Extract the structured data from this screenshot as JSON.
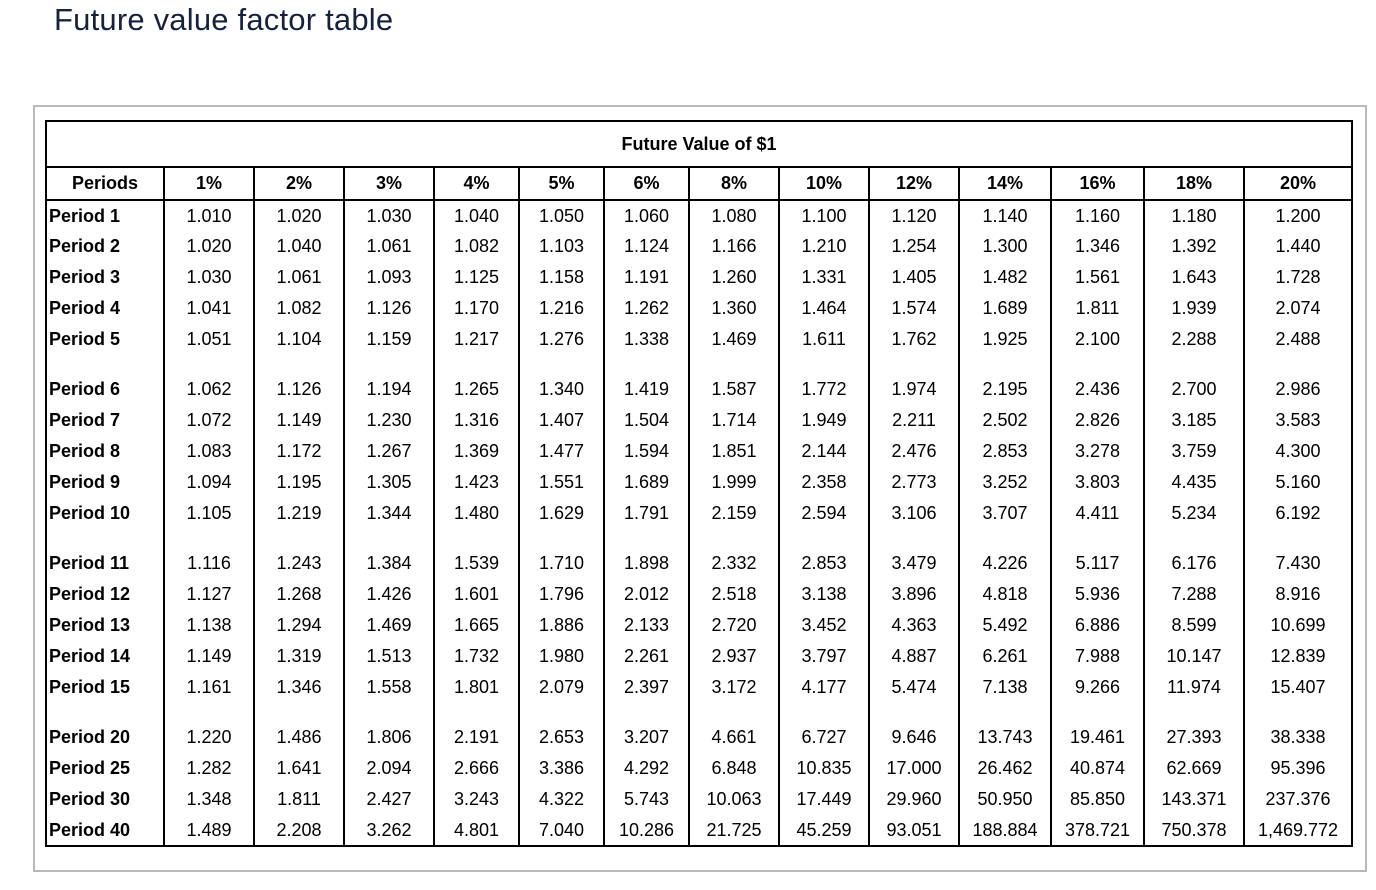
{
  "page": {
    "title": "Future value factor table"
  },
  "colors": {
    "title_text": "#16213e",
    "table_border": "#000000",
    "panel_border": "#bababa",
    "table_text": "#000000",
    "background": "#ffffff"
  },
  "chart_data": {
    "type": "table",
    "title": "Future Value of $1",
    "row_header_label": "Periods",
    "columns": [
      "1%",
      "2%",
      "3%",
      "4%",
      "5%",
      "6%",
      "8%",
      "10%",
      "12%",
      "14%",
      "16%",
      "18%",
      "20%"
    ],
    "groups": [
      {
        "name": "periods-1-5",
        "rows": [
          {
            "label": "Period 1",
            "values": [
              "1.010",
              "1.020",
              "1.030",
              "1.040",
              "1.050",
              "1.060",
              "1.080",
              "1.100",
              "1.120",
              "1.140",
              "1.160",
              "1.180",
              "1.200"
            ]
          },
          {
            "label": "Period 2",
            "values": [
              "1.020",
              "1.040",
              "1.061",
              "1.082",
              "1.103",
              "1.124",
              "1.166",
              "1.210",
              "1.254",
              "1.300",
              "1.346",
              "1.392",
              "1.440"
            ]
          },
          {
            "label": "Period 3",
            "values": [
              "1.030",
              "1.061",
              "1.093",
              "1.125",
              "1.158",
              "1.191",
              "1.260",
              "1.331",
              "1.405",
              "1.482",
              "1.561",
              "1.643",
              "1.728"
            ]
          },
          {
            "label": "Period 4",
            "values": [
              "1.041",
              "1.082",
              "1.126",
              "1.170",
              "1.216",
              "1.262",
              "1.360",
              "1.464",
              "1.574",
              "1.689",
              "1.811",
              "1.939",
              "2.074"
            ]
          },
          {
            "label": "Period 5",
            "values": [
              "1.051",
              "1.104",
              "1.159",
              "1.217",
              "1.276",
              "1.338",
              "1.469",
              "1.611",
              "1.762",
              "1.925",
              "2.100",
              "2.288",
              "2.488"
            ]
          }
        ]
      },
      {
        "name": "periods-6-10",
        "rows": [
          {
            "label": "Period 6",
            "values": [
              "1.062",
              "1.126",
              "1.194",
              "1.265",
              "1.340",
              "1.419",
              "1.587",
              "1.772",
              "1.974",
              "2.195",
              "2.436",
              "2.700",
              "2.986"
            ]
          },
          {
            "label": "Period 7",
            "values": [
              "1.072",
              "1.149",
              "1.230",
              "1.316",
              "1.407",
              "1.504",
              "1.714",
              "1.949",
              "2.211",
              "2.502",
              "2.826",
              "3.185",
              "3.583"
            ]
          },
          {
            "label": "Period 8",
            "values": [
              "1.083",
              "1.172",
              "1.267",
              "1.369",
              "1.477",
              "1.594",
              "1.851",
              "2.144",
              "2.476",
              "2.853",
              "3.278",
              "3.759",
              "4.300"
            ]
          },
          {
            "label": "Period 9",
            "values": [
              "1.094",
              "1.195",
              "1.305",
              "1.423",
              "1.551",
              "1.689",
              "1.999",
              "2.358",
              "2.773",
              "3.252",
              "3.803",
              "4.435",
              "5.160"
            ]
          },
          {
            "label": "Period 10",
            "values": [
              "1.105",
              "1.219",
              "1.344",
              "1.480",
              "1.629",
              "1.791",
              "2.159",
              "2.594",
              "3.106",
              "3.707",
              "4.411",
              "5.234",
              "6.192"
            ]
          }
        ]
      },
      {
        "name": "periods-11-15",
        "rows": [
          {
            "label": "Period 11",
            "values": [
              "1.116",
              "1.243",
              "1.384",
              "1.539",
              "1.710",
              "1.898",
              "2.332",
              "2.853",
              "3.479",
              "4.226",
              "5.117",
              "6.176",
              "7.430"
            ]
          },
          {
            "label": "Period 12",
            "values": [
              "1.127",
              "1.268",
              "1.426",
              "1.601",
              "1.796",
              "2.012",
              "2.518",
              "3.138",
              "3.896",
              "4.818",
              "5.936",
              "7.288",
              "8.916"
            ]
          },
          {
            "label": "Period 13",
            "values": [
              "1.138",
              "1.294",
              "1.469",
              "1.665",
              "1.886",
              "2.133",
              "2.720",
              "3.452",
              "4.363",
              "5.492",
              "6.886",
              "8.599",
              "10.699"
            ]
          },
          {
            "label": "Period 14",
            "values": [
              "1.149",
              "1.319",
              "1.513",
              "1.732",
              "1.980",
              "2.261",
              "2.937",
              "3.797",
              "4.887",
              "6.261",
              "7.988",
              "10.147",
              "12.839"
            ]
          },
          {
            "label": "Period 15",
            "values": [
              "1.161",
              "1.346",
              "1.558",
              "1.801",
              "2.079",
              "2.397",
              "3.172",
              "4.177",
              "5.474",
              "7.138",
              "9.266",
              "11.974",
              "15.407"
            ]
          }
        ]
      },
      {
        "name": "periods-20-40",
        "rows": [
          {
            "label": "Period 20",
            "values": [
              "1.220",
              "1.486",
              "1.806",
              "2.191",
              "2.653",
              "3.207",
              "4.661",
              "6.727",
              "9.646",
              "13.743",
              "19.461",
              "27.393",
              "38.338"
            ]
          },
          {
            "label": "Period 25",
            "values": [
              "1.282",
              "1.641",
              "2.094",
              "2.666",
              "3.386",
              "4.292",
              "6.848",
              "10.835",
              "17.000",
              "26.462",
              "40.874",
              "62.669",
              "95.396"
            ]
          },
          {
            "label": "Period 30",
            "values": [
              "1.348",
              "1.811",
              "2.427",
              "3.243",
              "4.322",
              "5.743",
              "10.063",
              "17.449",
              "29.960",
              "50.950",
              "85.850",
              "143.371",
              "237.376"
            ]
          },
          {
            "label": "Period 40",
            "values": [
              "1.489",
              "2.208",
              "3.262",
              "4.801",
              "7.040",
              "10.286",
              "21.725",
              "45.259",
              "93.051",
              "188.884",
              "378.721",
              "750.378",
              "1,469.772"
            ]
          }
        ]
      }
    ]
  }
}
